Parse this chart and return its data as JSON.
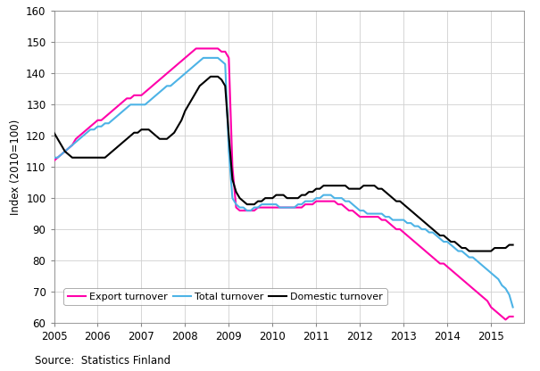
{
  "title": "",
  "ylabel": "Index (2010=100)",
  "source_text": "Source:  Statistics Finland",
  "ylim": [
    60,
    160
  ],
  "yticks": [
    60,
    70,
    80,
    90,
    100,
    110,
    120,
    130,
    140,
    150,
    160
  ],
  "xtick_years": [
    2005,
    2006,
    2007,
    2008,
    2009,
    2010,
    2011,
    2012,
    2013,
    2014,
    2015
  ],
  "colors": {
    "total": "#4db3e6",
    "domestic": "#000000",
    "export": "#ff00aa"
  },
  "linewidth": 1.5,
  "total_turnover": {
    "x": [
      2005.0,
      2005.083,
      2005.167,
      2005.25,
      2005.333,
      2005.417,
      2005.5,
      2005.583,
      2005.667,
      2005.75,
      2005.833,
      2005.917,
      2006.0,
      2006.083,
      2006.167,
      2006.25,
      2006.333,
      2006.417,
      2006.5,
      2006.583,
      2006.667,
      2006.75,
      2006.833,
      2006.917,
      2007.0,
      2007.083,
      2007.167,
      2007.25,
      2007.333,
      2007.417,
      2007.5,
      2007.583,
      2007.667,
      2007.75,
      2007.833,
      2007.917,
      2008.0,
      2008.083,
      2008.167,
      2008.25,
      2008.333,
      2008.417,
      2008.5,
      2008.583,
      2008.667,
      2008.75,
      2008.833,
      2008.917,
      2009.0,
      2009.083,
      2009.167,
      2009.25,
      2009.333,
      2009.417,
      2009.5,
      2009.583,
      2009.667,
      2009.75,
      2009.833,
      2009.917,
      2010.0,
      2010.083,
      2010.167,
      2010.25,
      2010.333,
      2010.417,
      2010.5,
      2010.583,
      2010.667,
      2010.75,
      2010.833,
      2010.917,
      2011.0,
      2011.083,
      2011.167,
      2011.25,
      2011.333,
      2011.417,
      2011.5,
      2011.583,
      2011.667,
      2011.75,
      2011.833,
      2011.917,
      2012.0,
      2012.083,
      2012.167,
      2012.25,
      2012.333,
      2012.417,
      2012.5,
      2012.583,
      2012.667,
      2012.75,
      2012.833,
      2012.917,
      2013.0,
      2013.083,
      2013.167,
      2013.25,
      2013.333,
      2013.417,
      2013.5,
      2013.583,
      2013.667,
      2013.75,
      2013.833,
      2013.917,
      2014.0,
      2014.083,
      2014.167,
      2014.25,
      2014.333,
      2014.417,
      2014.5,
      2014.583,
      2014.667,
      2014.75,
      2014.833,
      2014.917,
      2015.0,
      2015.083,
      2015.167,
      2015.25,
      2015.333,
      2015.417,
      2015.5
    ],
    "y": [
      113,
      113,
      114,
      115,
      116,
      117,
      118,
      119,
      120,
      121,
      122,
      122,
      123,
      123,
      124,
      124,
      125,
      126,
      127,
      128,
      129,
      130,
      130,
      130,
      130,
      130,
      131,
      132,
      133,
      134,
      135,
      136,
      136,
      137,
      138,
      139,
      140,
      141,
      142,
      143,
      144,
      145,
      145,
      145,
      145,
      145,
      144,
      143,
      115,
      100,
      98,
      97,
      97,
      96,
      96,
      97,
      97,
      98,
      98,
      98,
      98,
      98,
      97,
      97,
      97,
      97,
      97,
      98,
      98,
      99,
      99,
      99,
      100,
      100,
      101,
      101,
      101,
      100,
      100,
      100,
      99,
      99,
      98,
      97,
      96,
      96,
      95,
      95,
      95,
      95,
      95,
      94,
      94,
      93,
      93,
      93,
      93,
      92,
      92,
      91,
      91,
      90,
      90,
      89,
      89,
      88,
      87,
      86,
      86,
      85,
      84,
      83,
      83,
      82,
      81,
      81,
      80,
      79,
      78,
      77,
      76,
      75,
      74,
      72,
      71,
      69,
      65
    ]
  },
  "domestic_turnover": {
    "x": [
      2005.0,
      2005.083,
      2005.167,
      2005.25,
      2005.333,
      2005.417,
      2005.5,
      2005.583,
      2005.667,
      2005.75,
      2005.833,
      2005.917,
      2006.0,
      2006.083,
      2006.167,
      2006.25,
      2006.333,
      2006.417,
      2006.5,
      2006.583,
      2006.667,
      2006.75,
      2006.833,
      2006.917,
      2007.0,
      2007.083,
      2007.167,
      2007.25,
      2007.333,
      2007.417,
      2007.5,
      2007.583,
      2007.667,
      2007.75,
      2007.833,
      2007.917,
      2008.0,
      2008.083,
      2008.167,
      2008.25,
      2008.333,
      2008.417,
      2008.5,
      2008.583,
      2008.667,
      2008.75,
      2008.833,
      2008.917,
      2009.0,
      2009.083,
      2009.167,
      2009.25,
      2009.333,
      2009.417,
      2009.5,
      2009.583,
      2009.667,
      2009.75,
      2009.833,
      2009.917,
      2010.0,
      2010.083,
      2010.167,
      2010.25,
      2010.333,
      2010.417,
      2010.5,
      2010.583,
      2010.667,
      2010.75,
      2010.833,
      2010.917,
      2011.0,
      2011.083,
      2011.167,
      2011.25,
      2011.333,
      2011.417,
      2011.5,
      2011.583,
      2011.667,
      2011.75,
      2011.833,
      2011.917,
      2012.0,
      2012.083,
      2012.167,
      2012.25,
      2012.333,
      2012.417,
      2012.5,
      2012.583,
      2012.667,
      2012.75,
      2012.833,
      2012.917,
      2013.0,
      2013.083,
      2013.167,
      2013.25,
      2013.333,
      2013.417,
      2013.5,
      2013.583,
      2013.667,
      2013.75,
      2013.833,
      2013.917,
      2014.0,
      2014.083,
      2014.167,
      2014.25,
      2014.333,
      2014.417,
      2014.5,
      2014.583,
      2014.667,
      2014.75,
      2014.833,
      2014.917,
      2015.0,
      2015.083,
      2015.167,
      2015.25,
      2015.333,
      2015.417,
      2015.5
    ],
    "y": [
      121,
      119,
      117,
      115,
      114,
      113,
      113,
      113,
      113,
      113,
      113,
      113,
      113,
      113,
      113,
      114,
      115,
      116,
      117,
      118,
      119,
      120,
      121,
      121,
      122,
      122,
      122,
      121,
      120,
      119,
      119,
      119,
      120,
      121,
      123,
      125,
      128,
      130,
      132,
      134,
      136,
      137,
      138,
      139,
      139,
      139,
      138,
      136,
      120,
      106,
      102,
      100,
      99,
      98,
      98,
      98,
      99,
      99,
      100,
      100,
      100,
      101,
      101,
      101,
      100,
      100,
      100,
      100,
      101,
      101,
      102,
      102,
      103,
      103,
      104,
      104,
      104,
      104,
      104,
      104,
      104,
      103,
      103,
      103,
      103,
      104,
      104,
      104,
      104,
      103,
      103,
      102,
      101,
      100,
      99,
      99,
      98,
      97,
      96,
      95,
      94,
      93,
      92,
      91,
      90,
      89,
      88,
      88,
      87,
      86,
      86,
      85,
      84,
      84,
      83,
      83,
      83,
      83,
      83,
      83,
      83,
      84,
      84,
      84,
      84,
      85,
      85
    ]
  },
  "export_turnover": {
    "x": [
      2005.0,
      2005.083,
      2005.167,
      2005.25,
      2005.333,
      2005.417,
      2005.5,
      2005.583,
      2005.667,
      2005.75,
      2005.833,
      2005.917,
      2006.0,
      2006.083,
      2006.167,
      2006.25,
      2006.333,
      2006.417,
      2006.5,
      2006.583,
      2006.667,
      2006.75,
      2006.833,
      2006.917,
      2007.0,
      2007.083,
      2007.167,
      2007.25,
      2007.333,
      2007.417,
      2007.5,
      2007.583,
      2007.667,
      2007.75,
      2007.833,
      2007.917,
      2008.0,
      2008.083,
      2008.167,
      2008.25,
      2008.333,
      2008.417,
      2008.5,
      2008.583,
      2008.667,
      2008.75,
      2008.833,
      2008.917,
      2009.0,
      2009.083,
      2009.167,
      2009.25,
      2009.333,
      2009.417,
      2009.5,
      2009.583,
      2009.667,
      2009.75,
      2009.833,
      2009.917,
      2010.0,
      2010.083,
      2010.167,
      2010.25,
      2010.333,
      2010.417,
      2010.5,
      2010.583,
      2010.667,
      2010.75,
      2010.833,
      2010.917,
      2011.0,
      2011.083,
      2011.167,
      2011.25,
      2011.333,
      2011.417,
      2011.5,
      2011.583,
      2011.667,
      2011.75,
      2011.833,
      2011.917,
      2012.0,
      2012.083,
      2012.167,
      2012.25,
      2012.333,
      2012.417,
      2012.5,
      2012.583,
      2012.667,
      2012.75,
      2012.833,
      2012.917,
      2013.0,
      2013.083,
      2013.167,
      2013.25,
      2013.333,
      2013.417,
      2013.5,
      2013.583,
      2013.667,
      2013.75,
      2013.833,
      2013.917,
      2014.0,
      2014.083,
      2014.167,
      2014.25,
      2014.333,
      2014.417,
      2014.5,
      2014.583,
      2014.667,
      2014.75,
      2014.833,
      2014.917,
      2015.0,
      2015.083,
      2015.167,
      2015.25,
      2015.333,
      2015.417,
      2015.5
    ],
    "y": [
      112,
      113,
      114,
      115,
      116,
      117,
      119,
      120,
      121,
      122,
      123,
      124,
      125,
      125,
      126,
      127,
      128,
      129,
      130,
      131,
      132,
      132,
      133,
      133,
      133,
      134,
      135,
      136,
      137,
      138,
      139,
      140,
      141,
      142,
      143,
      144,
      145,
      146,
      147,
      148,
      148,
      148,
      148,
      148,
      148,
      148,
      147,
      147,
      145,
      110,
      97,
      96,
      96,
      96,
      96,
      96,
      97,
      97,
      97,
      97,
      97,
      97,
      97,
      97,
      97,
      97,
      97,
      97,
      97,
      98,
      98,
      98,
      99,
      99,
      99,
      99,
      99,
      99,
      98,
      98,
      97,
      96,
      96,
      95,
      94,
      94,
      94,
      94,
      94,
      94,
      93,
      93,
      92,
      91,
      90,
      90,
      89,
      88,
      87,
      86,
      85,
      84,
      83,
      82,
      81,
      80,
      79,
      79,
      78,
      77,
      76,
      75,
      74,
      73,
      72,
      71,
      70,
      69,
      68,
      67,
      65,
      64,
      63,
      62,
      61,
      62,
      62
    ]
  }
}
